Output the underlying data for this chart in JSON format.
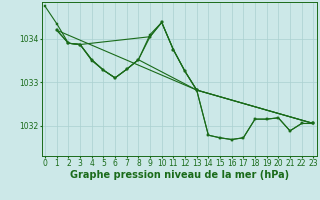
{
  "background_color": "#cce8e8",
  "grid_color": "#aad0d0",
  "line_color": "#1a6b1a",
  "marker_color": "#1a6b1a",
  "xlabel": "Graphe pression niveau de la mer (hPa)",
  "xlabel_fontsize": 7,
  "tick_fontsize": 5.5,
  "ylabel_ticks": [
    1032,
    1033,
    1034
  ],
  "xlim": [
    -0.3,
    23.3
  ],
  "ylim": [
    1031.3,
    1034.85
  ],
  "series1": {
    "x": [
      0,
      1,
      2,
      3,
      4,
      5,
      6,
      7,
      8,
      9,
      10,
      11,
      12,
      13,
      14,
      15,
      16,
      17,
      18,
      19,
      20,
      21,
      22,
      23
    ],
    "y": [
      1034.75,
      1034.35,
      1033.9,
      1033.87,
      1033.5,
      1033.28,
      1033.1,
      1033.3,
      1033.52,
      1034.1,
      1034.38,
      1033.75,
      1033.25,
      1032.82,
      1031.78,
      1031.72,
      1031.68,
      1031.72,
      1032.15,
      1032.15,
      1032.18,
      1031.88,
      1032.05,
      1032.05
    ]
  },
  "series2": {
    "x": [
      1,
      2,
      3,
      4,
      5,
      6,
      7,
      8,
      9,
      10,
      11,
      12,
      13,
      14,
      15,
      16,
      17,
      18,
      19,
      20,
      21,
      22,
      23
    ],
    "y": [
      1034.2,
      1033.9,
      1033.87,
      1033.52,
      1033.28,
      1033.1,
      1033.3,
      1033.52,
      1034.05,
      1034.38,
      1033.75,
      1033.25,
      1032.82,
      1031.78,
      1031.72,
      1031.68,
      1031.72,
      1032.15,
      1032.15,
      1032.18,
      1031.88,
      1032.05,
      1032.05
    ]
  },
  "series3": {
    "x": [
      2,
      3,
      4,
      5,
      6,
      7,
      8,
      13,
      23
    ],
    "y": [
      1033.9,
      1033.87,
      1033.52,
      1033.28,
      1033.1,
      1033.3,
      1033.52,
      1032.82,
      1032.05
    ]
  },
  "series4": {
    "x": [
      1,
      13,
      23
    ],
    "y": [
      1034.2,
      1032.82,
      1032.05
    ]
  },
  "series5": {
    "x": [
      1,
      2,
      3,
      9,
      10,
      11,
      12,
      13,
      23
    ],
    "y": [
      1034.2,
      1033.9,
      1033.87,
      1034.05,
      1034.38,
      1033.75,
      1033.25,
      1032.82,
      1032.05
    ]
  }
}
